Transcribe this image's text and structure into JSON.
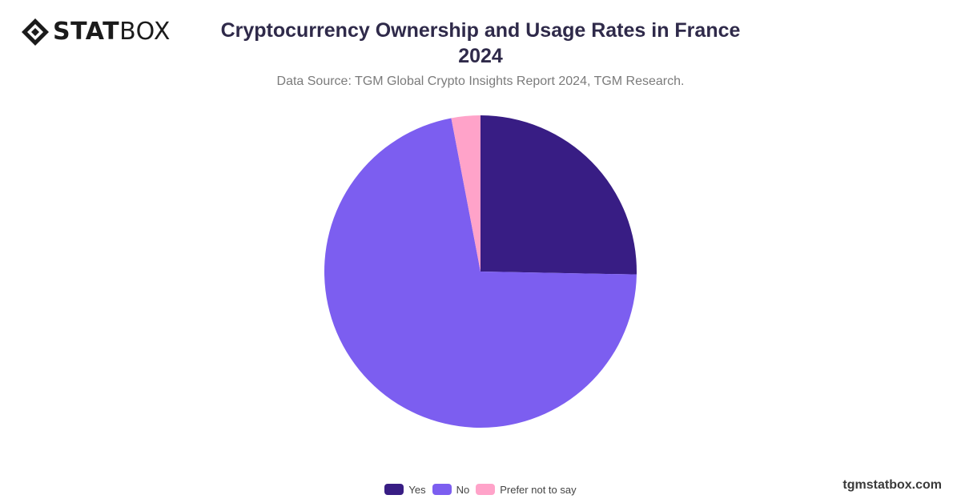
{
  "brand": {
    "name_bold": "STAT",
    "name_light": "BOX",
    "footer_site": "tgmstatbox.com"
  },
  "chart_data": {
    "type": "pie",
    "title_line1": "Cryptocurrency Ownership and Usage Rates in France",
    "title_line2": "2024",
    "subtitle": "Data Source: TGM Global Crypto Insights Report 2024, TGM Research.",
    "categories": [
      "Yes",
      "No",
      "Prefer not to say"
    ],
    "values": [
      25.3,
      71.7,
      3.0
    ],
    "colors": [
      "#381d84",
      "#7c5ef0",
      "#ffa3c9"
    ],
    "legend_position": "bottom"
  }
}
